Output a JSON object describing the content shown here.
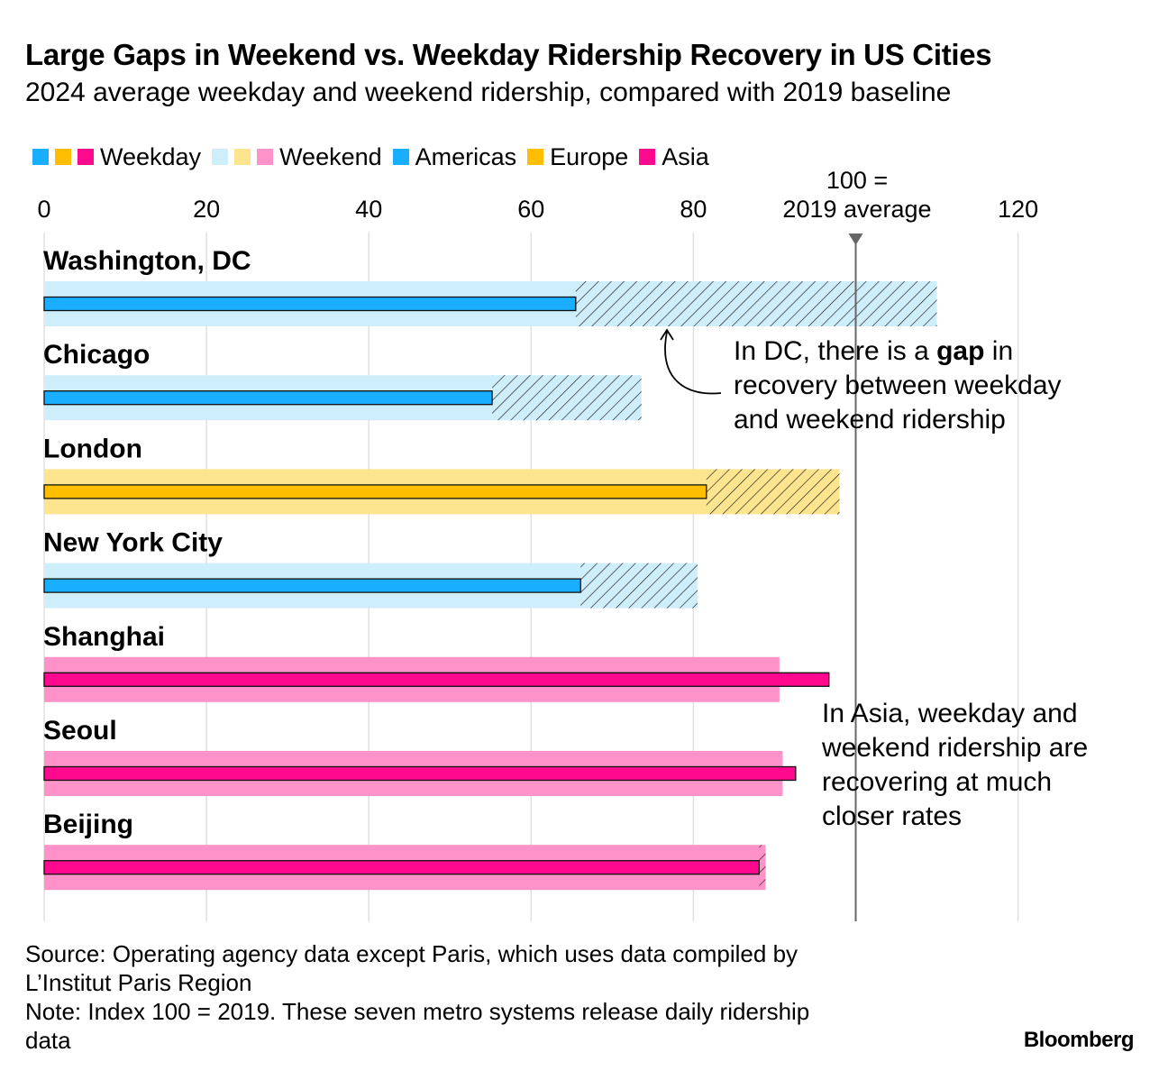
{
  "title": "Large Gaps in Weekend vs. Weekday Ridership Recovery in US Cities",
  "subtitle": "2024 average weekday and weekend ridership, compared with 2019 baseline",
  "legend": {
    "weekday_label": "Weekday",
    "weekend_label": "Weekend",
    "americas_label": "Americas",
    "europe_label": "Europe",
    "asia_label": "Asia"
  },
  "colors": {
    "americas": "#19aeff",
    "americas_light": "#cfeefb",
    "europe": "#ffbf00",
    "europe_light": "#fde48f",
    "asia": "#ff0a8f",
    "asia_light": "#ff93c9",
    "grid": "#e0e0e0",
    "ref_line": "#666666"
  },
  "annotations": {
    "ref_line_1": "100 =",
    "ref_line_2": "2019 average",
    "dc_note_line1_pre": "In DC, there is a ",
    "dc_note_line1_bold": "gap",
    "dc_note_line1_post": " in",
    "dc_note_line2": "recovery between weekday",
    "dc_note_line3": "and weekend ridership",
    "asia_note_lines": [
      "In Asia, weekday and",
      "weekend ridership are",
      "recovering at much",
      "closer rates"
    ]
  },
  "footer": {
    "source_1": "Source: Operating agency data except Paris, which uses data compiled by",
    "source_2": "L’Institut Paris Region",
    "note_1": "Note: Index 100 = 2019. These seven metro systems release daily ridership",
    "note_2": "data",
    "brand": "Bloomberg"
  },
  "chart_data": {
    "type": "bar",
    "orientation": "horizontal",
    "xlim": [
      0,
      130
    ],
    "xticks": [
      0,
      20,
      40,
      60,
      80,
      100,
      120
    ],
    "xtick_labels": [
      "0",
      "20",
      "40",
      "60",
      "80",
      "",
      "120"
    ],
    "reference_value": 100,
    "categories": [
      "Washington, DC",
      "Chicago",
      "London",
      "New York City",
      "Shanghai",
      "Seoul",
      "Beijing"
    ],
    "regions": [
      "americas",
      "americas",
      "europe",
      "americas",
      "asia",
      "asia",
      "asia"
    ],
    "series": [
      {
        "name": "Weekday",
        "values": [
          65.5,
          55.2,
          81.6,
          66.1,
          96.7,
          92.6,
          88.1
        ]
      },
      {
        "name": "Weekend",
        "values": [
          110.0,
          73.6,
          98.0,
          80.5,
          90.6,
          91.0,
          88.9
        ]
      }
    ],
    "grid": true,
    "legend_position": "top-left"
  }
}
